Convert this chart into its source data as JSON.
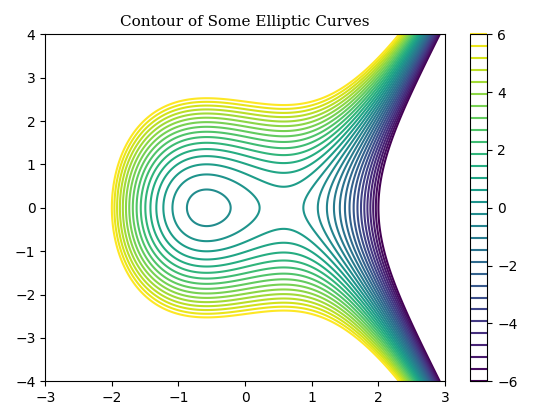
{
  "title": "Contour of Some Elliptic Curves",
  "xlim": [
    -3,
    3
  ],
  "ylim": [
    -4,
    4
  ],
  "colorbar_range": [
    -6,
    6
  ],
  "n_levels": 30,
  "colormap": "viridis",
  "x_ticks": [
    -3,
    -2,
    -1,
    0,
    1,
    2,
    3
  ],
  "y_ticks": [
    -4,
    -3,
    -2,
    -1,
    0,
    1,
    2,
    3,
    4
  ],
  "cb_ticks": [
    -6,
    -4,
    -2,
    0,
    2,
    4,
    6
  ],
  "figsize": [
    5.6,
    4.2
  ],
  "dpi": 100
}
